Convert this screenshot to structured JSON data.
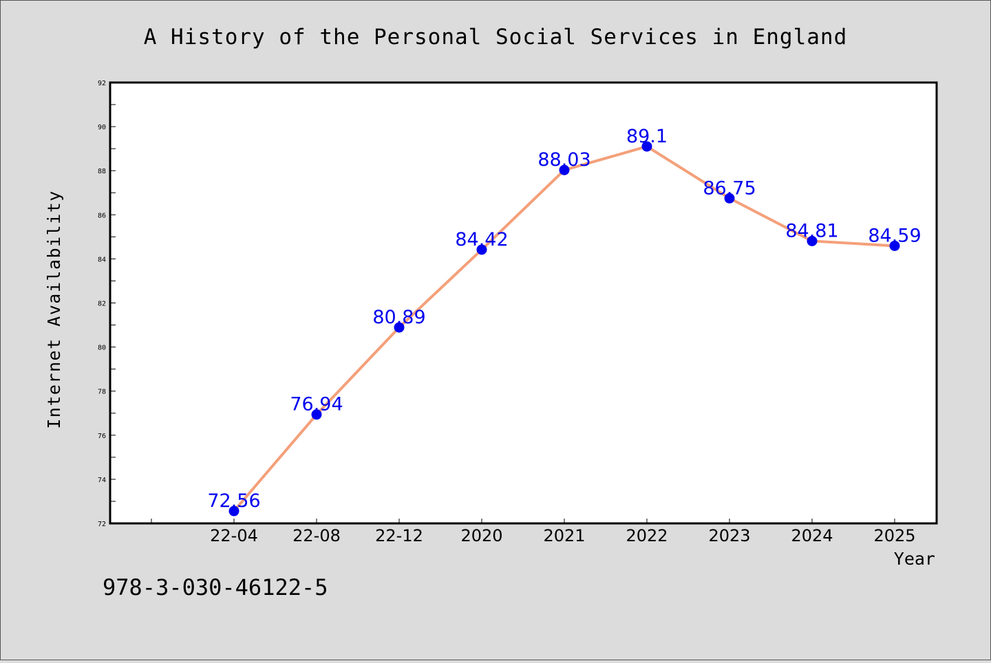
{
  "chart_data": {
    "type": "line",
    "title": "A History of the Personal Social Services in England",
    "xlabel": "Year",
    "ylabel": "Internet Availability",
    "categories": [
      "22-04",
      "22-08",
      "22-12",
      "2020",
      "2021",
      "2022",
      "2023",
      "2024",
      "2025"
    ],
    "values": [
      72.56,
      76.94,
      80.89,
      84.42,
      88.03,
      89.1,
      86.75,
      84.81,
      84.59
    ],
    "data_labels": [
      "72.56",
      "76.94",
      "80.89",
      "84.42",
      "88.03",
      "89.1",
      "86.75",
      "84.81",
      "84.59"
    ],
    "ylim": [
      72,
      92
    ],
    "yticks": [
      72,
      74,
      76,
      78,
      80,
      82,
      84,
      86,
      88,
      90,
      92
    ],
    "ytick_labels": [
      "72",
      "74",
      "76",
      "78",
      "80",
      "82",
      "84",
      "86",
      "88",
      "90",
      "92"
    ],
    "grid": false,
    "colors": {
      "line": "#f4a07a",
      "marker": "#0000ee",
      "data_label": "#0000ee",
      "background": "#dcdcdc",
      "plot_area": "#ffffff"
    }
  },
  "footer": {
    "isbn": "978-3-030-46122-5"
  }
}
